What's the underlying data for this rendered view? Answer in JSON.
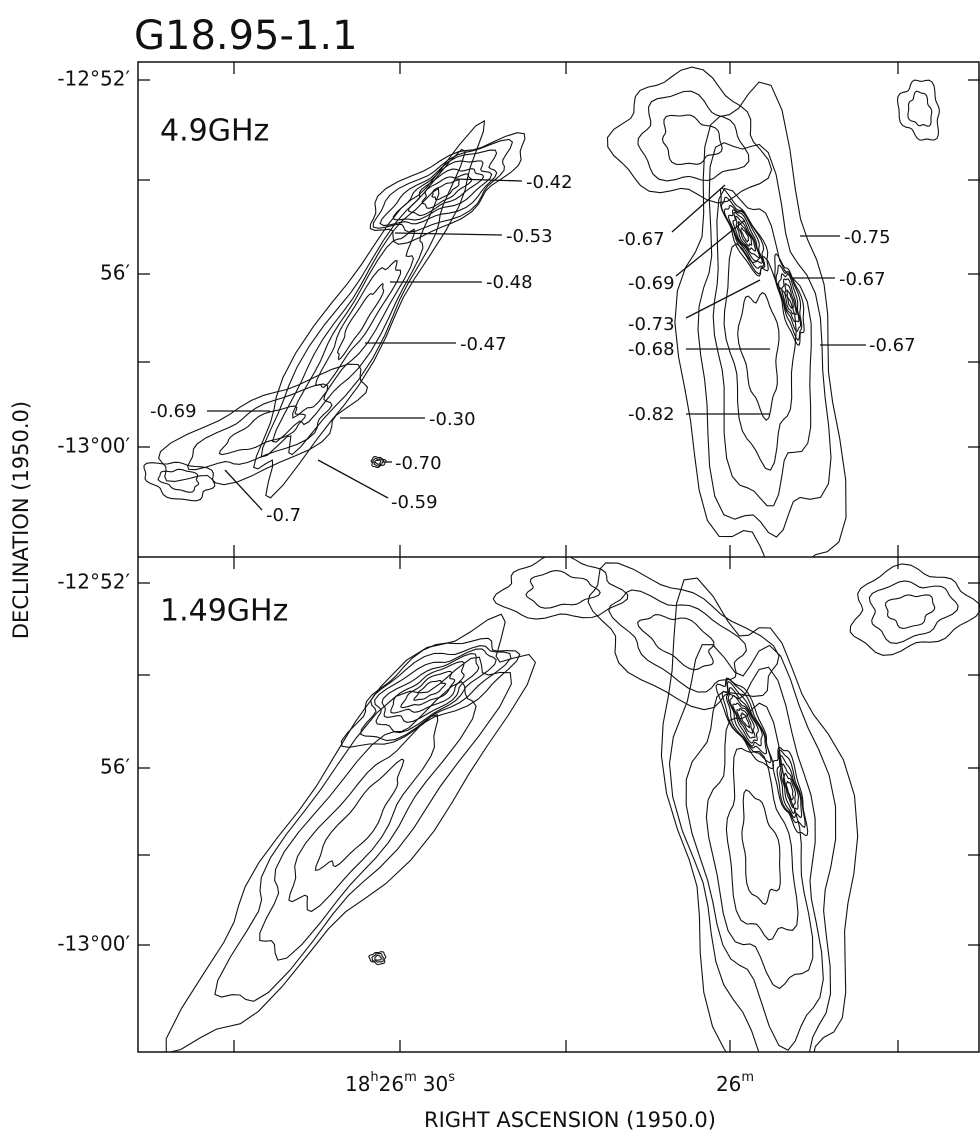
{
  "title": "G18.95-1.1",
  "panels": [
    {
      "label": "4.9GHz",
      "annotations": [
        "-0.42",
        "-0.53",
        "-0.48",
        "-0.47",
        "-0.30",
        "-0.69",
        "-0.70",
        "-0.7",
        "-0.59",
        "-0.67",
        "-0.69",
        "-0.73",
        "-0.68",
        "-0.82",
        "-0.75",
        "-0.67",
        "-0.67"
      ],
      "y_ticks": [
        "-12°52′",
        "56′",
        "-13°00′"
      ]
    },
    {
      "label": "1.49GHz",
      "y_ticks": [
        "-12°52′",
        "56′",
        "-13°00′"
      ]
    }
  ],
  "x_ticks": [
    [
      "18",
      "h",
      "26",
      "m",
      "30",
      "s"
    ],
    [
      "26",
      "m"
    ]
  ],
  "x_axis_title": "RIGHT ASCENSION (1950.0)",
  "y_axis_title": "DECLINATION (1950.0)"
}
